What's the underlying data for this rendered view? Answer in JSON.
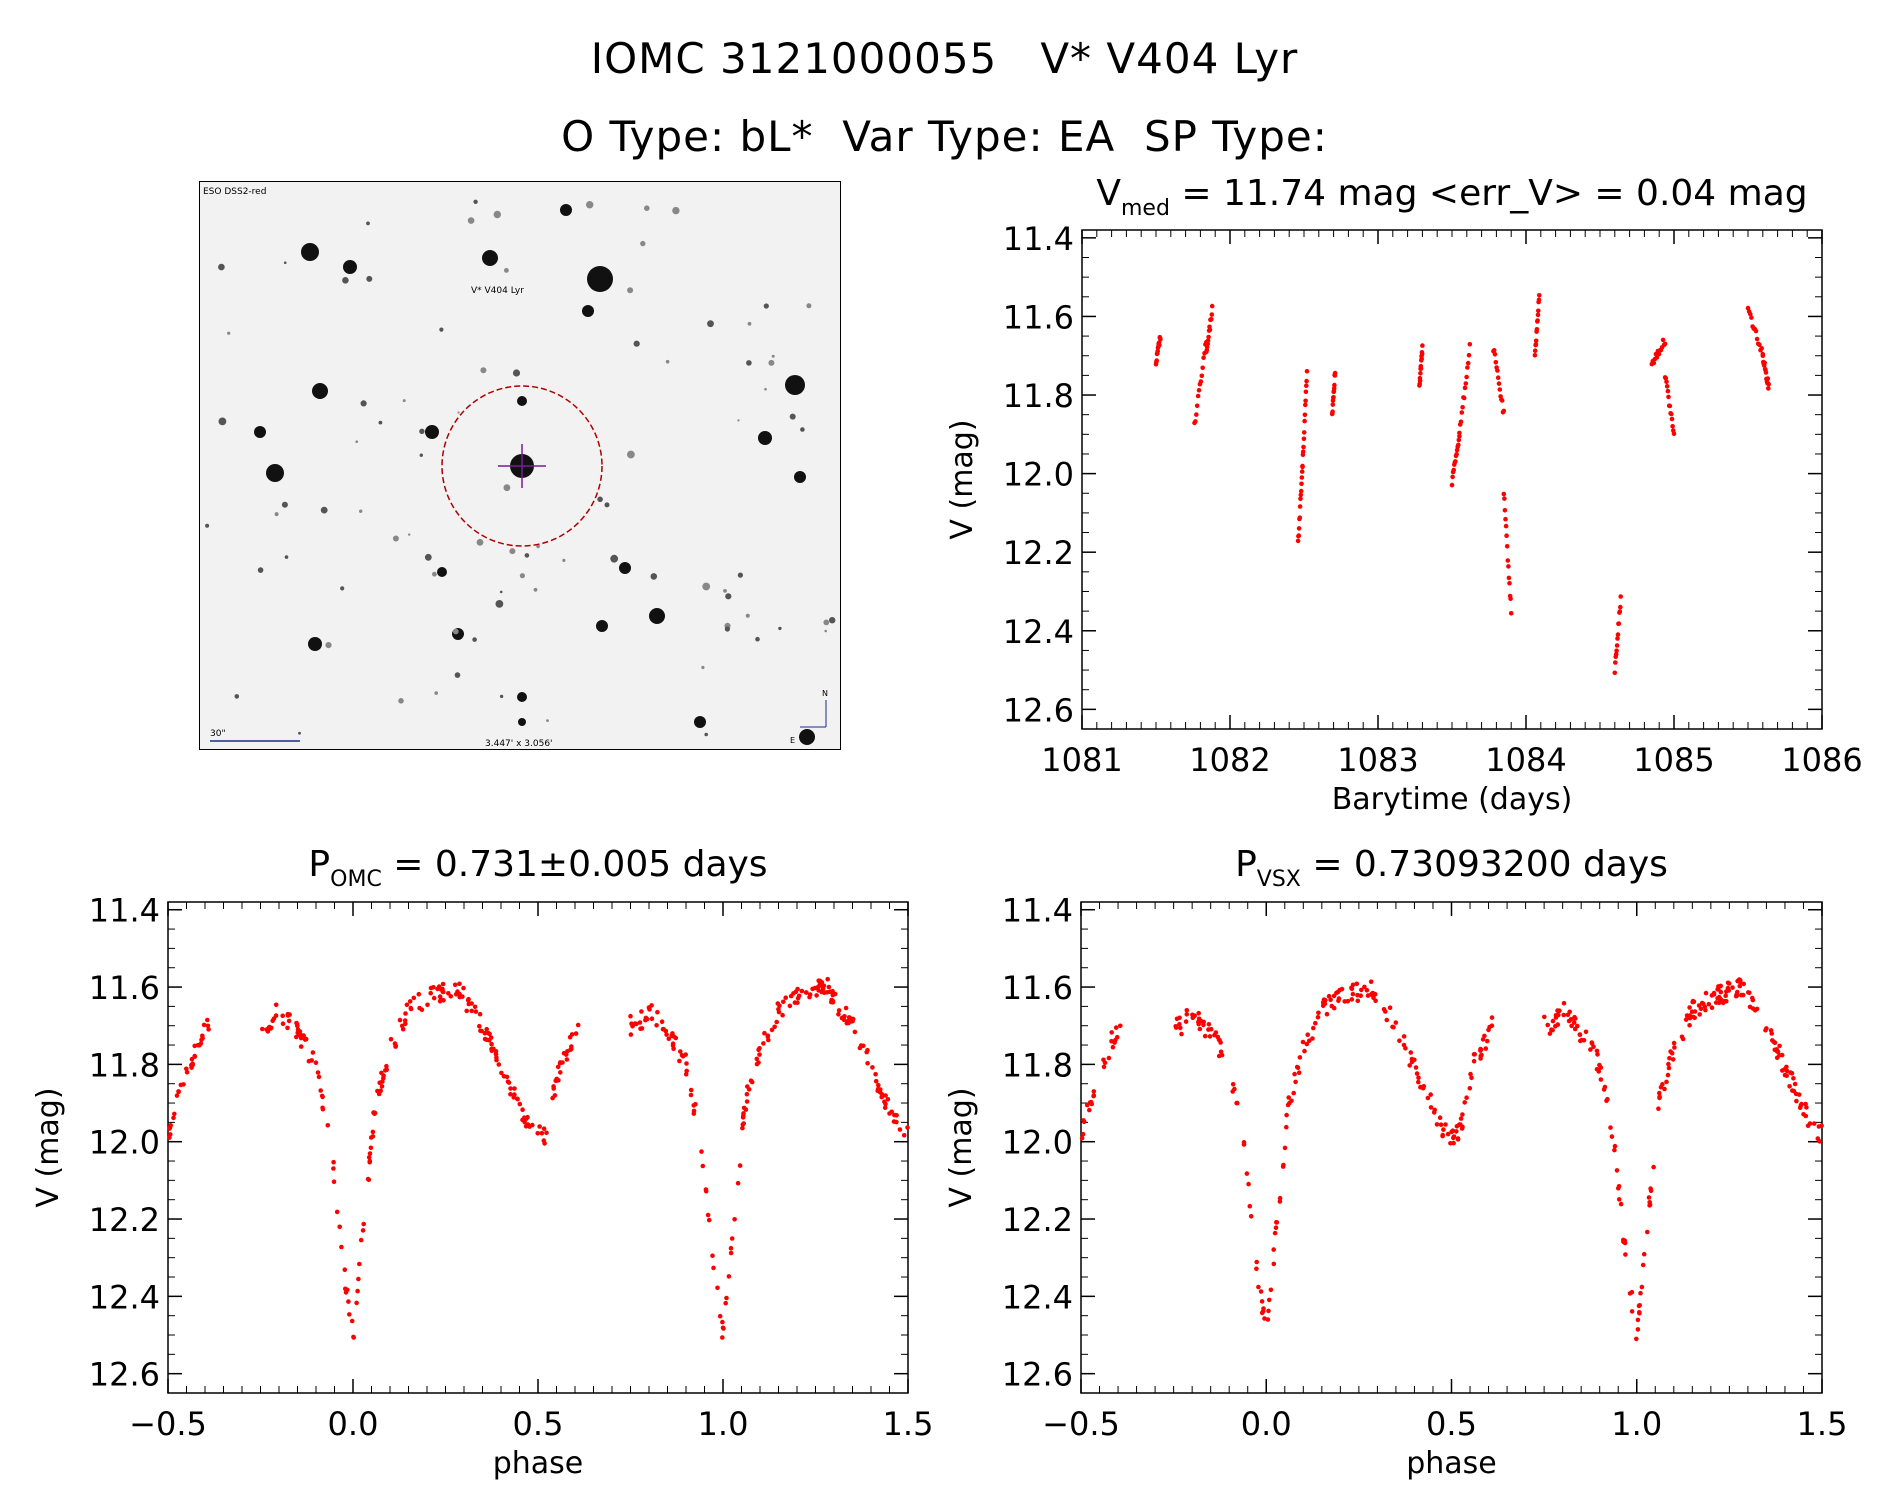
{
  "header": {
    "title": "IOMC 3121000055   V* V404 Lyr",
    "subtitle": "O Type: bL*  Var Type: EA  SP Type:"
  },
  "finder_chart": {
    "survey_label": "ESO DSS2-red",
    "target_label": "V* V404 Lyr",
    "scale_label": "30\"",
    "fov_label": "3.447' x 3.056'",
    "north_label": "N",
    "east_label": "E",
    "colors": {
      "target": "#b00000",
      "crosshair": "#7a1a9a",
      "labels": "#1a2a8a"
    }
  },
  "chart_data": [
    {
      "id": "lightcurve",
      "type": "scatter",
      "title_main": "V",
      "title_sub": "med",
      "title_rest": " = 11.74 mag <err_V> = 0.04 mag",
      "xlabel": "Barytime (days)",
      "ylabel": "V (mag)",
      "xlim": [
        1081,
        1086
      ],
      "ylim": [
        12.65,
        11.38
      ],
      "xticks": [
        1081,
        1082,
        1083,
        1084,
        1085,
        1086
      ],
      "xtick_labels": [
        "1081",
        "1082",
        "1083",
        "1084",
        "1085",
        "1086"
      ],
      "yticks": [
        11.4,
        11.6,
        11.8,
        12.0,
        12.2,
        12.4,
        12.6
      ],
      "ytick_labels": [
        "11.4",
        "11.6",
        "11.8",
        "12.0",
        "12.2",
        "12.4",
        "12.6"
      ],
      "point_color": "#ff0000",
      "segments": [
        {
          "t": [
            1081.5,
            1081.53
          ],
          "v": [
            11.72,
            11.65
          ]
        },
        {
          "t": [
            1081.76,
            1081.84
          ],
          "v": [
            11.88,
            11.66
          ]
        },
        {
          "t": [
            1081.84,
            1081.88
          ],
          "v": [
            11.7,
            11.58
          ]
        },
        {
          "t": [
            1082.46,
            1082.49
          ],
          "v": [
            12.18,
            11.98
          ]
        },
        {
          "t": [
            1082.49,
            1082.52
          ],
          "v": [
            11.98,
            11.74
          ]
        },
        {
          "t": [
            1082.69,
            1082.71
          ],
          "v": [
            11.85,
            11.74
          ]
        },
        {
          "t": [
            1083.28,
            1083.3
          ],
          "v": [
            11.78,
            11.68
          ]
        },
        {
          "t": [
            1083.5,
            1083.55
          ],
          "v": [
            12.02,
            11.9
          ]
        },
        {
          "t": [
            1083.55,
            1083.62
          ],
          "v": [
            11.9,
            11.68
          ]
        },
        {
          "t": [
            1083.78,
            1083.85
          ],
          "v": [
            11.68,
            11.85
          ]
        },
        {
          "t": [
            1083.85,
            1083.9
          ],
          "v": [
            12.05,
            12.35
          ]
        },
        {
          "t": [
            1084.06,
            1084.09
          ],
          "v": [
            11.7,
            11.55
          ]
        },
        {
          "t": [
            1084.6,
            1084.64
          ],
          "v": [
            12.5,
            12.32
          ]
        },
        {
          "t": [
            1084.85,
            1084.94
          ],
          "v": [
            11.72,
            11.66
          ]
        },
        {
          "t": [
            1084.94,
            1085.0
          ],
          "v": [
            11.75,
            11.9
          ]
        },
        {
          "t": [
            1085.5,
            1085.6
          ],
          "v": [
            11.58,
            11.7
          ]
        },
        {
          "t": [
            1085.6,
            1085.64
          ],
          "v": [
            11.7,
            11.78
          ]
        }
      ]
    },
    {
      "id": "phase_omc",
      "type": "scatter",
      "title_main": "P",
      "title_sub": "OMC",
      "title_rest": " = 0.731±0.005 days",
      "xlabel": "phase",
      "ylabel": "V (mag)",
      "xlim": [
        -0.5,
        1.5
      ],
      "ylim": [
        12.65,
        11.38
      ],
      "xticks": [
        -0.5,
        0.0,
        0.5,
        1.0,
        1.5
      ],
      "xtick_labels": [
        "−0.5",
        "0.0",
        "0.5",
        "1.0",
        "1.5"
      ],
      "yticks": [
        11.4,
        11.6,
        11.8,
        12.0,
        12.2,
        12.4,
        12.6
      ],
      "ytick_labels": [
        "11.4",
        "11.6",
        "11.8",
        "12.0",
        "12.2",
        "12.4",
        "12.6"
      ],
      "point_color": "#ff0000",
      "curve_phase": [
        -0.5,
        -0.45,
        -0.4,
        -0.23,
        -0.2,
        -0.15,
        -0.1,
        -0.06,
        -0.03,
        0.0,
        0.03,
        0.06,
        0.1,
        0.15,
        0.2,
        0.28,
        0.35,
        0.42,
        0.48,
        0.52,
        0.56,
        0.6
      ],
      "curve_mag": [
        11.98,
        11.82,
        11.7,
        11.7,
        11.66,
        11.72,
        11.8,
        12.0,
        12.3,
        12.5,
        12.2,
        11.9,
        11.76,
        11.66,
        11.63,
        11.6,
        11.7,
        11.85,
        11.98,
        11.98,
        11.8,
        11.72
      ],
      "gaps": [
        [
          -0.39,
          -0.25
        ],
        [
          0.61,
          0.75
        ]
      ]
    },
    {
      "id": "phase_vsx",
      "type": "scatter",
      "title_main": "P",
      "title_sub": "VSX",
      "title_rest": " = 0.73093200 days",
      "xlabel": "phase",
      "ylabel": "V (mag)",
      "xlim": [
        -0.5,
        1.5
      ],
      "ylim": [
        12.65,
        11.38
      ],
      "xticks": [
        -0.5,
        0.0,
        0.5,
        1.0,
        1.5
      ],
      "xtick_labels": [
        "−0.5",
        "0.0",
        "0.5",
        "1.0",
        "1.5"
      ],
      "yticks": [
        11.4,
        11.6,
        11.8,
        12.0,
        12.2,
        12.4,
        12.6
      ],
      "ytick_labels": [
        "11.4",
        "11.6",
        "11.8",
        "12.0",
        "12.2",
        "12.4",
        "12.6"
      ],
      "point_color": "#ff0000",
      "curve_phase": [
        -0.5,
        -0.45,
        -0.4,
        -0.23,
        -0.2,
        -0.15,
        -0.1,
        -0.06,
        -0.03,
        0.0,
        0.03,
        0.06,
        0.1,
        0.15,
        0.2,
        0.28,
        0.35,
        0.42,
        0.48,
        0.52,
        0.56,
        0.6
      ],
      "curve_mag": [
        11.98,
        11.82,
        11.7,
        11.7,
        11.66,
        11.72,
        11.8,
        12.0,
        12.3,
        12.5,
        12.2,
        11.9,
        11.76,
        11.66,
        11.63,
        11.6,
        11.7,
        11.85,
        11.98,
        11.98,
        11.8,
        11.72
      ],
      "gaps": [
        [
          -0.39,
          -0.25
        ],
        [
          0.61,
          0.75
        ]
      ]
    }
  ]
}
